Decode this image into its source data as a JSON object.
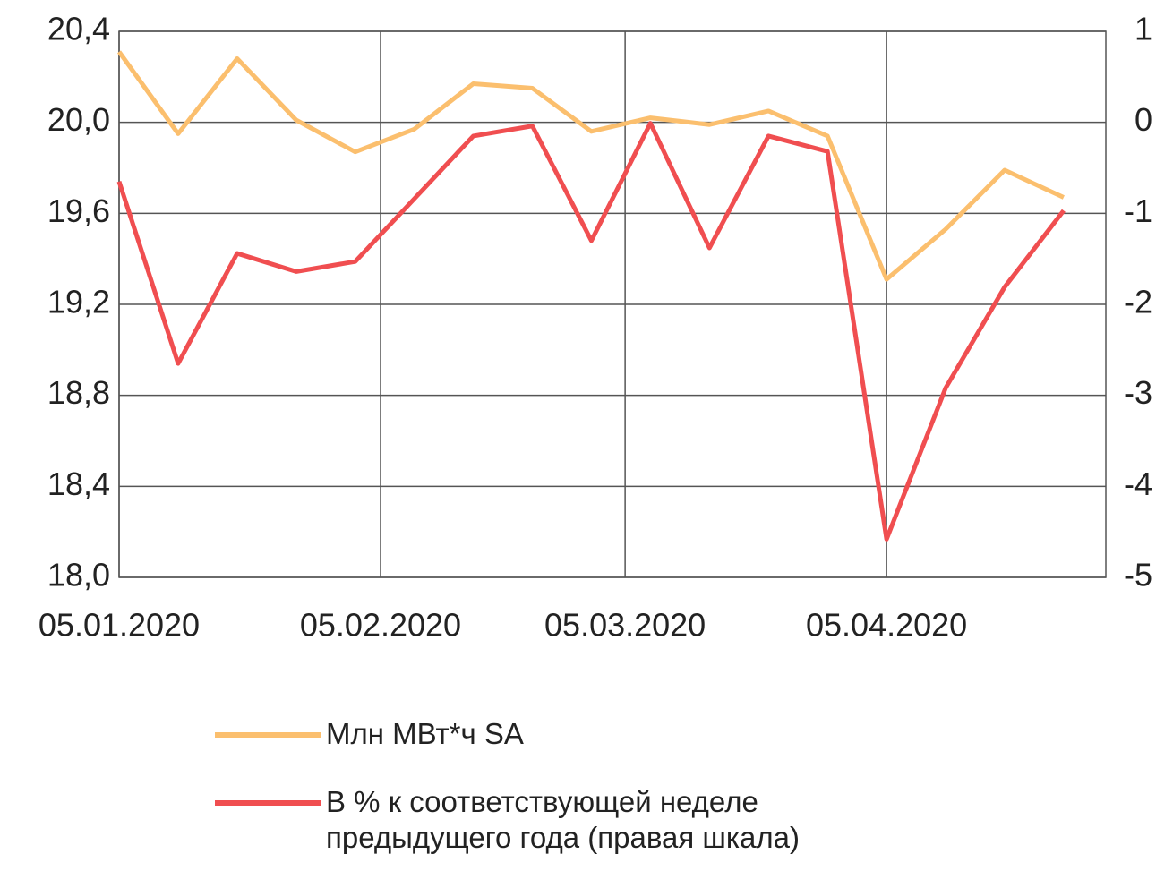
{
  "chart_data": {
    "type": "line",
    "x": [
      "05.01.2020",
      "12.01.2020",
      "19.01.2020",
      "26.01.2020",
      "02.02.2020",
      "09.02.2020",
      "16.02.2020",
      "23.02.2020",
      "01.03.2020",
      "08.03.2020",
      "15.03.2020",
      "22.03.2020",
      "29.03.2020",
      "05.04.2020",
      "12.04.2020",
      "19.04.2020",
      "26.04.2020"
    ],
    "xlim": [
      "05.01.2020",
      "01.05.2020"
    ],
    "xticks": [
      "05.01.2020",
      "05.02.2020",
      "05.03.2020",
      "05.04.2020"
    ],
    "ylim": [
      18.0,
      20.4
    ],
    "yticks": [
      {
        "value": 18.0,
        "label": "18,0"
      },
      {
        "value": 18.4,
        "label": "18,4"
      },
      {
        "value": 18.8,
        "label": "18,8"
      },
      {
        "value": 19.2,
        "label": "19,2"
      },
      {
        "value": 19.6,
        "label": "19,6"
      },
      {
        "value": 20.0,
        "label": "20,0"
      },
      {
        "value": 20.4,
        "label": "20,4"
      }
    ],
    "y2lim": [
      -5,
      1
    ],
    "y2ticks": [
      -5,
      -4,
      -3,
      -2,
      -1,
      0,
      1
    ],
    "grid": true,
    "series": [
      {
        "name": "Млн МВт*ч SA",
        "color": "#fbbf6e",
        "values": [
          20.31,
          19.95,
          20.28,
          20.01,
          19.87,
          19.97,
          20.17,
          20.15,
          19.96,
          20.02,
          19.99,
          20.05,
          19.94,
          19.31,
          19.53,
          19.79,
          19.67
        ]
      },
      {
        "name": "В % к соответствующей неделе предыдущего года (правая шкала)",
        "color": "#f04e50",
        "axis": "y2",
        "values": [
          -0.65,
          -2.65,
          -1.44,
          -1.64,
          -1.53,
          -0.84,
          -0.15,
          -0.04,
          -1.3,
          -0.01,
          -1.38,
          -0.15,
          -0.32,
          -4.58,
          -2.92,
          -1.81,
          -0.97
        ]
      }
    ]
  }
}
